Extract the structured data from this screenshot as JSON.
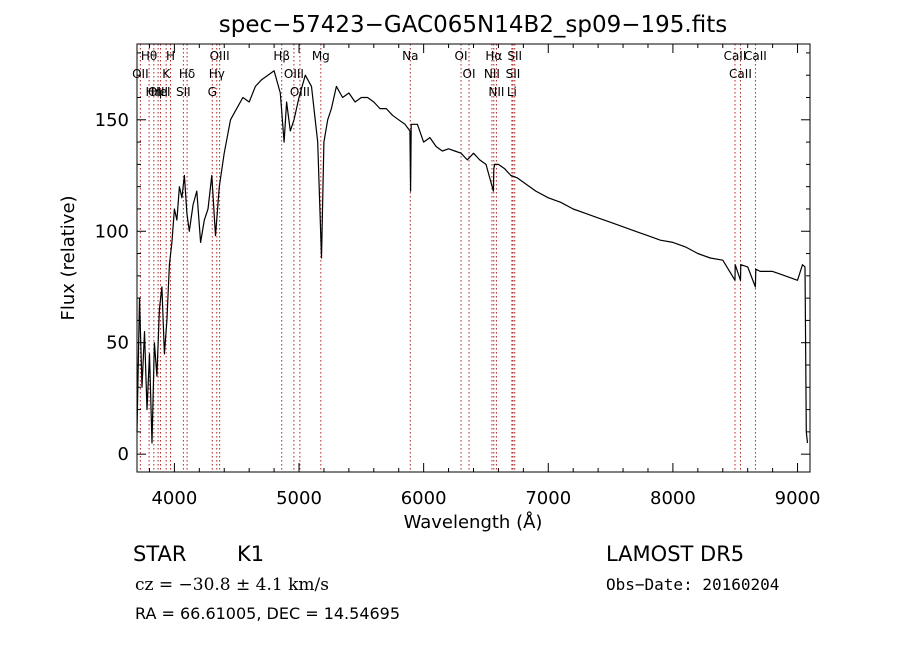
{
  "chart_data": {
    "type": "line",
    "title": "spec−57423−GAC065N14B2_sp09−195.fits",
    "xlabel": "Wavelength (Å)",
    "ylabel": "Flux (relative)",
    "xlim": [
      3700,
      9100
    ],
    "ylim": [
      -8,
      184
    ],
    "x_ticks": [
      4000,
      5000,
      6000,
      7000,
      8000,
      9000
    ],
    "y_ticks": [
      0,
      50,
      100,
      150
    ],
    "grid": false,
    "line_color": "#000000",
    "marker_color": "#b22222",
    "series": [
      {
        "x": [
          3700,
          3720,
          3740,
          3760,
          3780,
          3800,
          3820,
          3840,
          3860,
          3880,
          3900,
          3920,
          3940,
          3960,
          3980,
          4000,
          4020,
          4040,
          4060,
          4080,
          4100,
          4120,
          4150,
          4180,
          4210,
          4240,
          4270,
          4300,
          4330,
          4360,
          4400,
          4450,
          4500,
          4550,
          4600,
          4650,
          4700,
          4750,
          4800,
          4850,
          4880,
          4900,
          4930,
          4960,
          5000,
          5050,
          5100,
          5150,
          5180,
          5200,
          5230,
          5260,
          5300,
          5350,
          5400,
          5450,
          5500,
          5550,
          5600,
          5650,
          5700,
          5750,
          5800,
          5850,
          5890,
          5895,
          5900,
          5950,
          6000,
          6050,
          6100,
          6150,
          6200,
          6250,
          6300,
          6350,
          6400,
          6450,
          6500,
          6560,
          6563,
          6570,
          6600,
          6650,
          6700,
          6750,
          6800,
          6900,
          7000,
          7100,
          7200,
          7300,
          7400,
          7500,
          7600,
          7700,
          7800,
          7900,
          8000,
          8100,
          8200,
          8300,
          8400,
          8498,
          8500,
          8542,
          8545,
          8600,
          8662,
          8665,
          8700,
          8800,
          8900,
          9000,
          9040,
          9060,
          9070,
          9080
        ],
        "y": [
          10,
          70,
          30,
          55,
          20,
          45,
          5,
          50,
          35,
          65,
          75,
          45,
          60,
          85,
          95,
          110,
          105,
          120,
          115,
          125,
          108,
          100,
          112,
          118,
          95,
          105,
          110,
          125,
          98,
          120,
          135,
          150,
          155,
          160,
          158,
          165,
          168,
          170,
          172,
          162,
          140,
          158,
          145,
          150,
          160,
          170,
          165,
          140,
          88,
          140,
          150,
          155,
          165,
          160,
          162,
          158,
          160,
          160,
          158,
          155,
          155,
          152,
          150,
          148,
          145,
          118,
          148,
          148,
          140,
          142,
          138,
          136,
          137,
          136,
          135,
          132,
          135,
          132,
          130,
          118,
          128,
          130,
          130,
          128,
          125,
          124,
          122,
          118,
          115,
          113,
          110,
          108,
          106,
          104,
          102,
          100,
          98,
          96,
          95,
          93,
          90,
          88,
          87,
          78,
          85,
          78,
          85,
          84,
          75,
          83,
          82,
          82,
          80,
          78,
          85,
          84,
          10,
          5
        ]
      }
    ],
    "lines": [
      {
        "label": "Hθ",
        "wavelength": 3797
      },
      {
        "label": "OII",
        "wavelength": 3727
      },
      {
        "label": "OIII",
        "wavelength": 3869
      },
      {
        "label": "K",
        "wavelength": 3934
      },
      {
        "label": "Hη",
        "wavelength": 3835
      },
      {
        "label": "HeI",
        "wavelength": 3889
      },
      {
        "label": "H",
        "wavelength": 3969
      },
      {
        "label": "SII",
        "wavelength": 4072
      },
      {
        "label": "Hδ",
        "wavelength": 4102
      },
      {
        "label": "OIII",
        "wavelength": 4363
      },
      {
        "label": "Hγ",
        "wavelength": 4340
      },
      {
        "label": "G",
        "wavelength": 4304
      },
      {
        "label": "Hβ",
        "wavelength": 4861
      },
      {
        "label": "OIII",
        "wavelength": 4959
      },
      {
        "label": "OIII",
        "wavelength": 5007
      },
      {
        "label": "Mg",
        "wavelength": 5175
      },
      {
        "label": "Na",
        "wavelength": 5893
      },
      {
        "label": "OI",
        "wavelength": 6300
      },
      {
        "label": "OI",
        "wavelength": 6364
      },
      {
        "label": "Hα",
        "wavelength": 6563
      },
      {
        "label": "NII",
        "wavelength": 6548
      },
      {
        "label": "NII",
        "wavelength": 6584
      },
      {
        "label": "SII",
        "wavelength": 6717
      },
      {
        "label": "Li",
        "wavelength": 6708
      },
      {
        "label": "SII",
        "wavelength": 6731
      },
      {
        "label": "CaII",
        "wavelength": 8498
      },
      {
        "label": "CaII",
        "wavelength": 8542
      },
      {
        "label": "CaII",
        "wavelength": 8662
      }
    ]
  },
  "info": {
    "class": "STAR",
    "subclass": "K1",
    "survey": "LAMOST DR5",
    "cz": "cz = −30.8 ± 4.1 km/s",
    "obs_date": "Obs−Date: 20160204",
    "coords": "RA =  66.61005, DEC =  14.54695"
  }
}
